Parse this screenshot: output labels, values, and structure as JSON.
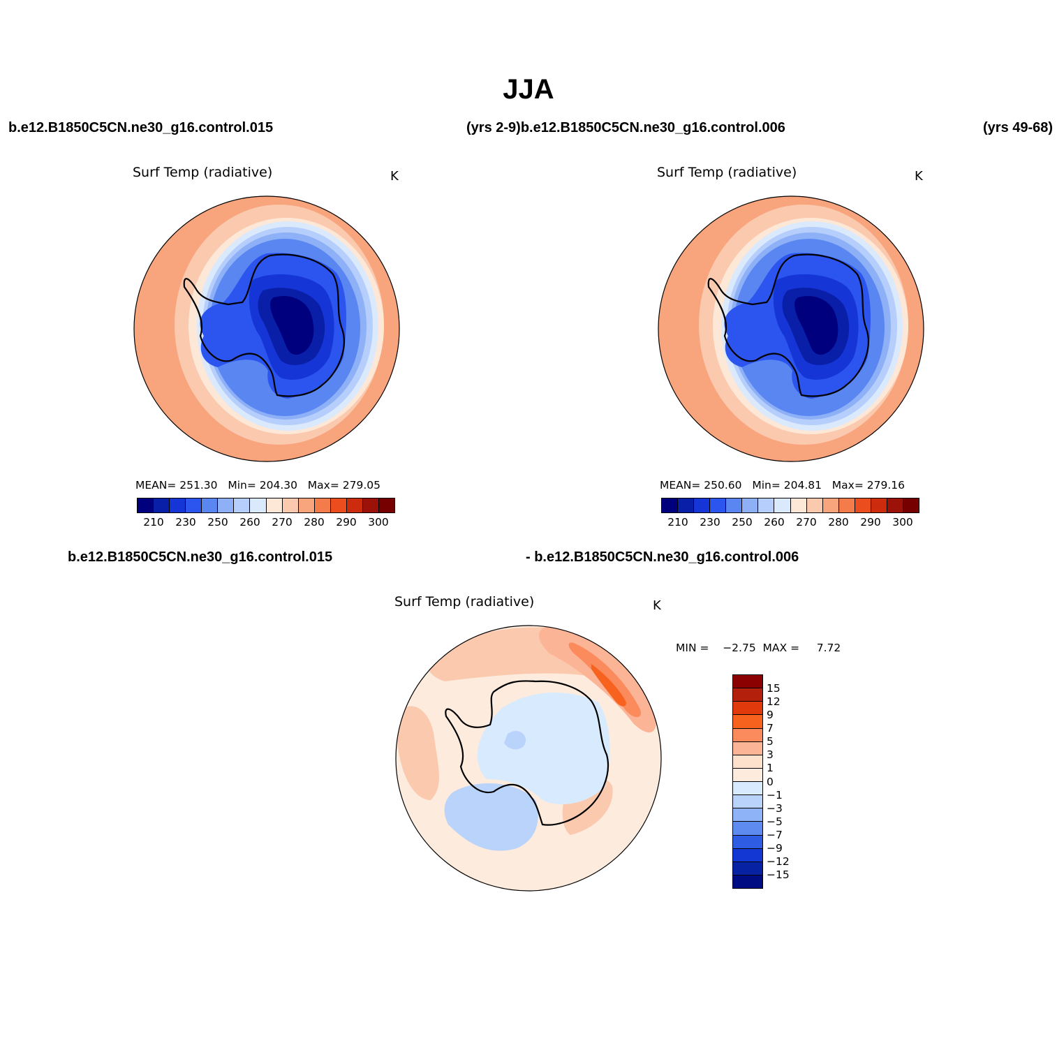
{
  "title": "JJA",
  "case_labels": {
    "left": "b.e12.B1850C5CN.ne30_g16.control.015",
    "middle": "(yrs 2-9)b.e12.B1850C5CN.ne30_g16.control.006",
    "right": "(yrs 49-68)",
    "diff_left": "b.e12.B1850C5CN.ne30_g16.control.015",
    "diff_right": "- b.e12.B1850C5CN.ne30_g16.control.006"
  },
  "panels": [
    {
      "variable": "Surf Temp (radiative)",
      "units": "K",
      "stats": {
        "mean_label": "MEAN=",
        "mean": "251.30",
        "min_label": "Min=",
        "min": "204.30",
        "max_label": "Max=",
        "max": "279.05"
      }
    },
    {
      "variable": "Surf Temp (radiative)",
      "units": "K",
      "stats": {
        "mean_label": "MEAN=",
        "mean": "250.60",
        "min_label": "Min=",
        "min": "204.81",
        "max_label": "Max=",
        "max": "279.16"
      }
    },
    {
      "variable": "Surf Temp (radiative)",
      "units": "K",
      "stats": {
        "min_label": "MIN =",
        "min": "−2.75",
        "max_label": "MAX =",
        "max": "7.72"
      }
    }
  ],
  "colorbar_abs": {
    "colors": [
      "#00007f",
      "#0a1fa8",
      "#1535d6",
      "#2b55ee",
      "#5a86f2",
      "#8eb0f7",
      "#b6cefb",
      "#dbe9fd",
      "#fde7d7",
      "#fbc9ae",
      "#f8a47d",
      "#f47b4a",
      "#eb4d1f",
      "#cc2b0e",
      "#9c1208",
      "#760000"
    ],
    "ticks": [
      "210",
      "230",
      "250",
      "260",
      "270",
      "280",
      "290",
      "300"
    ]
  },
  "colorbar_diff": {
    "colors": [
      "#8b0000",
      "#b3200b",
      "#e0390b",
      "#f7621f",
      "#fb8a5c",
      "#fbb596",
      "#fde1cd",
      "#fdebdd",
      "#d8ebfe",
      "#b9d3fb",
      "#8eb3f7",
      "#5d8bef",
      "#2e5ce3",
      "#1237d3",
      "#0722a2",
      "#000c82"
    ],
    "ticks": [
      "15",
      "12",
      "9",
      "7",
      "5",
      "3",
      "1",
      "0",
      "−1",
      "−3",
      "−5",
      "−7",
      "−9",
      "−12",
      "−15"
    ]
  }
}
